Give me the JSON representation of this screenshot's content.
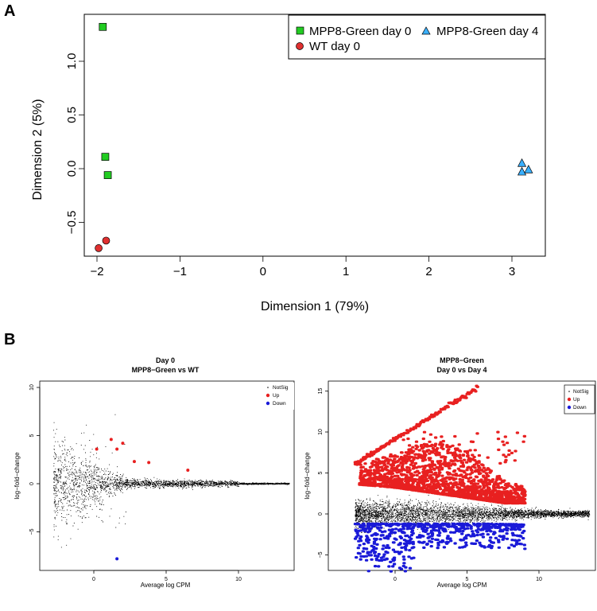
{
  "panels": {
    "a_letter": "A",
    "b_letter": "B"
  },
  "chart_data": [
    {
      "id": "mds",
      "type": "scatter",
      "title": "",
      "xlabel": "Dimension 1 (79%)",
      "ylabel": "Dimension 2 (5%)",
      "xlim": [
        -2.2,
        3.5
      ],
      "ylim": [
        -0.8,
        1.4
      ],
      "xticks": [
        -2,
        -1,
        0,
        1,
        2,
        3
      ],
      "xtick_labels": [
        "−2",
        "−1",
        "0",
        "1",
        "2",
        "3"
      ],
      "yticks": [
        -0.5,
        0.0,
        0.5,
        1.0
      ],
      "ytick_labels": [
        "−0.5",
        "0.0",
        "0.5",
        "1.0"
      ],
      "legend_position": "top-right",
      "series": [
        {
          "name": "MPP8-Green day 0",
          "marker": "square",
          "color": "#22cc22",
          "points": [
            [
              -1.93,
              1.32
            ],
            [
              -1.9,
              0.11
            ],
            [
              -1.87,
              -0.06
            ]
          ]
        },
        {
          "name": "MPP8-Green day 4",
          "marker": "triangle",
          "color": "#3ab0ff",
          "points": [
            [
              3.12,
              0.05
            ],
            [
              3.2,
              -0.01
            ],
            [
              3.12,
              -0.03
            ]
          ]
        },
        {
          "name": "WT day 0",
          "marker": "circle",
          "color": "#e03030",
          "points": [
            [
              -1.98,
              -0.74
            ],
            [
              -1.89,
              -0.67
            ]
          ]
        }
      ]
    },
    {
      "id": "ma1",
      "type": "scatter",
      "title": "Day 0",
      "subtitle": "MPP8−Green vs WT",
      "xlabel": "Average log CPM",
      "ylabel": "log−fold−change",
      "xlim": [
        -3.5,
        14
      ],
      "ylim": [
        -9.5,
        11
      ],
      "xticks": [
        0,
        5,
        10
      ],
      "xtick_labels": [
        "0",
        "5",
        "10"
      ],
      "yticks": [
        -5,
        0,
        5,
        10
      ],
      "ytick_labels": [
        "−5",
        "0",
        "5",
        "10"
      ],
      "legend_position": "top-right",
      "legend": [
        "NotSig",
        "Up",
        "Down"
      ],
      "legend_colors": [
        "#000000",
        "#e82020",
        "#1a1ad8"
      ],
      "up": [
        [
          0.2,
          3.6
        ],
        [
          1.2,
          4.6
        ],
        [
          1.6,
          3.6
        ],
        [
          2.0,
          4.2
        ],
        [
          2.8,
          2.3
        ],
        [
          3.8,
          2.2
        ],
        [
          6.5,
          1.4
        ]
      ],
      "down": [
        [
          1.6,
          -7.8
        ]
      ],
      "notsig_cloud": {
        "x_range": [
          -2.8,
          13.5
        ],
        "center": 0
      }
    },
    {
      "id": "ma2",
      "type": "scatter",
      "title": "MPP8−Green",
      "subtitle": "Day 0 vs Day 4",
      "xlabel": "Average log CPM",
      "ylabel": "log−fold−change",
      "xlim": [
        -3.5,
        14
      ],
      "ylim": [
        -7.5,
        16.5
      ],
      "xticks": [
        0,
        5,
        10
      ],
      "xtick_labels": [
        "0",
        "5",
        "10"
      ],
      "yticks": [
        -5,
        0,
        5,
        10,
        15
      ],
      "ytick_labels": [
        "−5",
        "0",
        "5",
        "10",
        "15"
      ],
      "legend_position": "top-right",
      "legend": [
        "NotSig",
        "Up",
        "Down"
      ],
      "legend_colors": [
        "#000000",
        "#e82020",
        "#1a1ad8"
      ],
      "up_line": {
        "from": [
          -2.8,
          6.1
        ],
        "to": [
          5.7,
          15.4
        ]
      },
      "notsig_cloud": {
        "x_range": [
          -2.8,
          13.5
        ],
        "center": 0
      }
    }
  ]
}
